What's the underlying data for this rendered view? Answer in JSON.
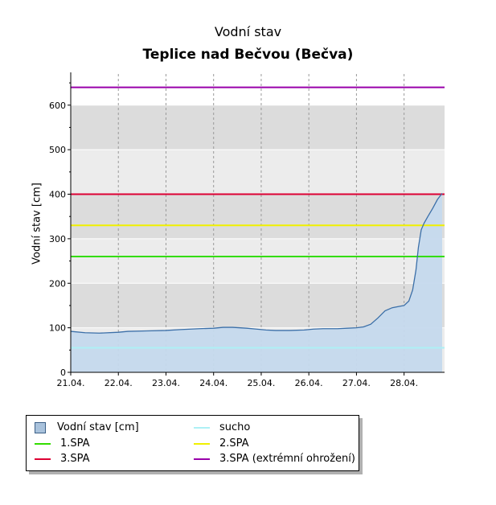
{
  "chart_data": {
    "type": "area",
    "title": "Vodní stav",
    "subtitle": "Teplice nad Bečvou (Bečva)",
    "xlabel": "",
    "ylabel": "Vodní stav [cm]",
    "xlim": [
      0,
      7.85
    ],
    "ylim": [
      0,
      670
    ],
    "y_ticks": [
      0,
      100,
      200,
      300,
      400,
      500,
      600
    ],
    "x_ticks": [
      "21.04.",
      "22.04.",
      "23.04.",
      "24.04.",
      "25.04.",
      "26.04.",
      "27.04.",
      "28.04."
    ],
    "series": [
      {
        "name": "Vodní stav [cm]",
        "x": [
          0,
          0.3,
          0.6,
          1.0,
          1.2,
          1.6,
          2.0,
          2.3,
          2.7,
          3.0,
          3.2,
          3.4,
          3.7,
          3.9,
          4.1,
          4.3,
          4.6,
          4.9,
          5.1,
          5.3,
          5.6,
          5.8,
          6.0,
          6.15,
          6.3,
          6.45,
          6.6,
          6.75,
          6.9,
          7.0,
          7.1,
          7.18,
          7.25,
          7.3,
          7.36,
          7.42,
          7.5,
          7.6,
          7.7,
          7.8
        ],
        "y": [
          92,
          89,
          88,
          90,
          92,
          93,
          94,
          96,
          98,
          99,
          101,
          101,
          99,
          97,
          95,
          94,
          94,
          95,
          97,
          98,
          98,
          99,
          100,
          102,
          108,
          122,
          138,
          145,
          148,
          150,
          160,
          185,
          230,
          280,
          320,
          335,
          350,
          368,
          388,
          402
        ]
      }
    ],
    "threshold_lines": [
      {
        "name": "sucho",
        "value": 55,
        "color": "#aef0f5"
      },
      {
        "name": "1.SPA",
        "value": 260,
        "color": "#33dd00"
      },
      {
        "name": "2.SPA",
        "value": 330,
        "color": "#f0f000"
      },
      {
        "name": "3.SPA",
        "value": 400,
        "color": "#dd0033"
      },
      {
        "name": "3.SPA (extrémní ohrožení)",
        "value": 640,
        "color": "#9900aa"
      }
    ],
    "colors": {
      "area_fill": "#c5d9ed",
      "area_line": "#3b6fa8",
      "band_dark": "#dcdcdc",
      "band_light": "#ececec"
    }
  },
  "legend": {
    "items": [
      {
        "label": "Vodní stav [cm]",
        "kind": "box",
        "color": "#a9c2dc"
      },
      {
        "label": "sucho",
        "kind": "line",
        "color": "#aef0f5"
      },
      {
        "label": "1.SPA",
        "kind": "line",
        "color": "#33dd00"
      },
      {
        "label": "2.SPA",
        "kind": "line",
        "color": "#f0f000"
      },
      {
        "label": "3.SPA",
        "kind": "line",
        "color": "#dd0033"
      },
      {
        "label": "3.SPA (extrémní ohrožení)",
        "kind": "line",
        "color": "#9900aa"
      }
    ]
  }
}
